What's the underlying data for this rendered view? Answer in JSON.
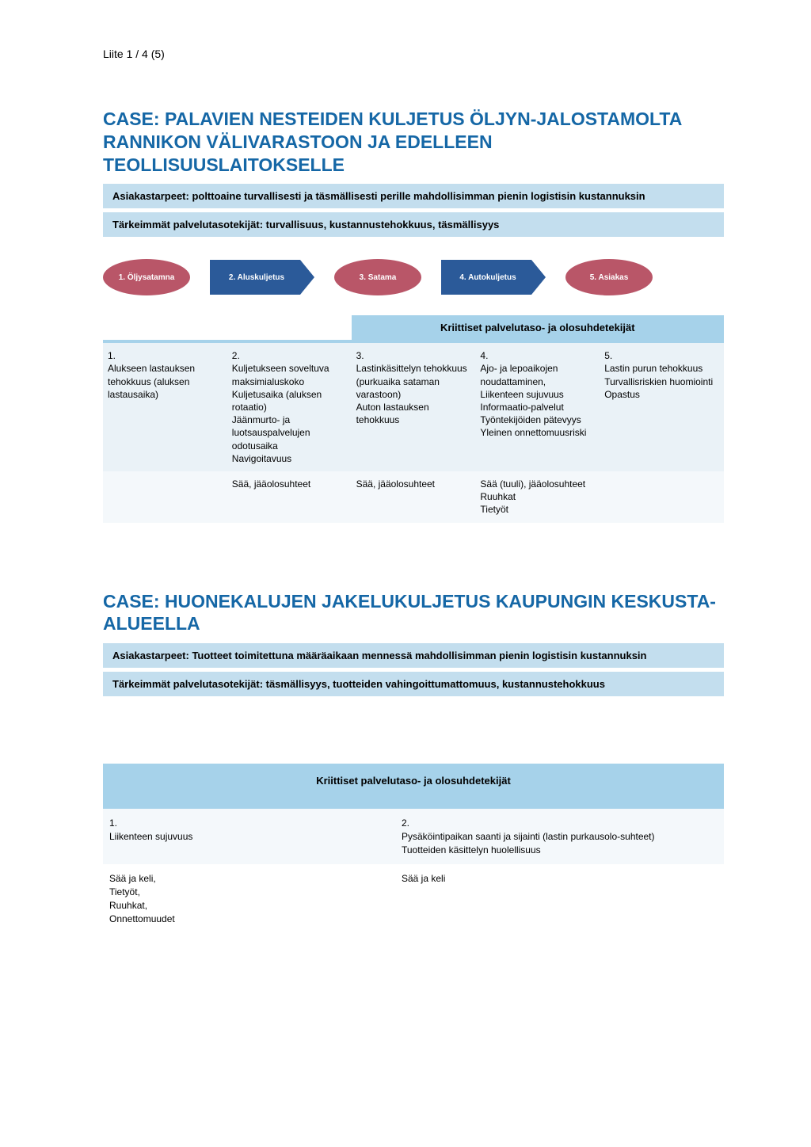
{
  "header": "Liite 1 / 4 (5)",
  "colors": {
    "title": "#1567a6",
    "bar_bg": "#c3deee",
    "table_header_bg": "#a6d2ea",
    "row_even_bg": "#eaf2f7",
    "row_odd_bg": "#f4f8fb",
    "ellipse_red": "#b95668",
    "arrow_blue": "#2b5a99"
  },
  "case1": {
    "title": "CASE: PALAVIEN NESTEIDEN KULJETUS ÖLJYN-JALOSTAMOLTA RANNIKON VÄLIVARASTOON JA EDELLEEN TEOLLISUUSLAITOKSELLE",
    "bar1": "Asiakastarpeet: polttoaine turvallisesti ja täsmällisesti perille mahdollisimman pienin logistisin kustannuksin",
    "bar2": "Tärkeimmät palvelutasotekijät: turvallisuus, kustannustehokkuus, täsmällisyys",
    "flow": [
      {
        "label": "1. Öljysatamna",
        "shape": "ellipse",
        "color": "red"
      },
      {
        "label": "2. Aluskuljetus",
        "shape": "arrow",
        "color": "blue"
      },
      {
        "label": "3. Satama",
        "shape": "ellipse",
        "color": "red"
      },
      {
        "label": "4. Autokuljetus",
        "shape": "arrow",
        "color": "blue"
      },
      {
        "label": "5. Asiakas",
        "shape": "ellipse",
        "color": "red"
      }
    ],
    "crit_header": "Kriittiset palvelutaso- ja olosuhdetekijät",
    "table": {
      "columns": 5,
      "row0": [
        "1.\nAlukseen lastauksen tehokkuus (aluksen lastausaika)",
        "2.\nKuljetukseen soveltuva maksimialuskoko\nKuljetusaika (aluksen rotaatio)\nJäänmurto- ja luotsauspalvelujen odotusaika\nNavigoitavuus",
        "3.\nLastinkäsittelyn tehokkuus (purkuaika sataman varastoon)\nAuton lastauksen tehokkuus",
        "4.\nAjo- ja lepoaikojen noudattaminen,\nLiikenteen sujuvuus\nInformaatio-palvelut\nTyöntekijöiden pätevyys\nYleinen onnettomuusriski",
        "5.\nLastin purun tehokkuus\nTurvallisriskien huomiointi\nOpastus"
      ],
      "row1": [
        "",
        "Sää, jääolosuhteet",
        "Sää, jääolosuhteet",
        "Sää (tuuli), jääolosuhteet\nRuuhkat\nTietyöt",
        ""
      ]
    }
  },
  "case2": {
    "title": "CASE: HUONEKALUJEN JAKELUKULJETUS KAUPUNGIN KESKUSTA-ALUEELLA",
    "bar1": "Asiakastarpeet: Tuotteet toimitettuna määräaikaan mennessä mahdollisimman pienin logistisin kustannuksin",
    "bar2": "Tärkeimmät palvelutasotekijät: täsmällisyys, tuotteiden vahingoittumattomuus, kustannustehokkuus",
    "crit_header": "Kriittiset palvelutaso- ja olosuhdetekijät",
    "table": {
      "row0": [
        "1.\nLiikenteen sujuvuus",
        "2.\nPysäköintipaikan saanti ja sijainti (lastin purkausolo-suhteet)\nTuotteiden käsittelyn huolellisuus"
      ],
      "row1": [
        "Sää ja keli,\nTietyöt,\nRuuhkat,\nOnnettomuudet",
        "Sää ja keli"
      ]
    }
  }
}
